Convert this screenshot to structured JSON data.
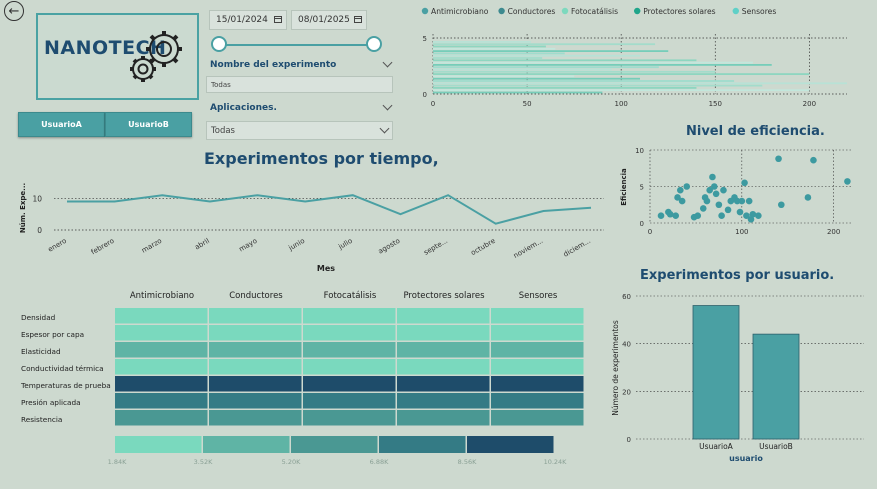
{
  "header": {
    "back_icon": "back-arrow-icon",
    "logo_text": "NANOTECH",
    "logo_icon": "gears-icon"
  },
  "users": {
    "a_label": "UsuarioA",
    "b_label": "UsuarioB"
  },
  "date_range": {
    "start": "15/01/2024",
    "end": "08/01/2025",
    "slider_start": 0.0,
    "slider_end": 1.0
  },
  "slicers": {
    "experiment_title": "Nombre del experimento",
    "experiment_value": "Todas",
    "applications_title": "Aplicaciones.",
    "applications_value": "Todas"
  },
  "colors": {
    "accent": "#4aa0a3",
    "dark": "#1e4c70",
    "bg": "#cdd9cf"
  },
  "top_chart": {
    "legend": [
      "Antimicrobiano",
      "Conductores",
      "Fotocatálisis",
      "Protectores solares",
      "Sensores"
    ],
    "legend_colors": [
      "#4aa0a3",
      "#3d8a8f",
      "#7dd9be",
      "#1fa58a",
      "#5fd0c7"
    ],
    "y_ticks": [
      "5",
      "0"
    ],
    "x_ticks": [
      "0",
      "50",
      "100",
      "150",
      "200"
    ]
  },
  "chart_data": [
    {
      "type": "line",
      "title": "Experimentos por tiempo,",
      "xlabel": "Mes",
      "ylabel": "Núm. Expe...",
      "categories": [
        "enero",
        "febrero",
        "marzo",
        "abril",
        "mayo",
        "junio",
        "julio",
        "agosto",
        "septe...",
        "octubre",
        "noviem...",
        "diciem..."
      ],
      "values": [
        9,
        9,
        11,
        9,
        11,
        9,
        11,
        5,
        11,
        2,
        6,
        7
      ],
      "ylim": [
        0,
        12
      ],
      "y_ticks": [
        "10",
        "0"
      ]
    },
    {
      "type": "scatter",
      "title": "Nivel de eficiencia.",
      "ylabel": "Eficiencia",
      "x_ticks": [
        "0",
        "100",
        "200"
      ],
      "y_ticks": [
        "10",
        "5",
        "0"
      ],
      "xlim": [
        0,
        220
      ],
      "ylim": [
        0,
        10
      ],
      "points": [
        [
          12,
          1
        ],
        [
          20,
          1.5
        ],
        [
          22,
          1.2
        ],
        [
          28,
          1
        ],
        [
          30,
          3.5
        ],
        [
          33,
          4.5
        ],
        [
          35,
          3
        ],
        [
          40,
          5
        ],
        [
          48,
          0.8
        ],
        [
          52,
          1
        ],
        [
          58,
          2
        ],
        [
          60,
          3.5
        ],
        [
          62,
          3
        ],
        [
          65,
          4.5
        ],
        [
          68,
          6.3
        ],
        [
          70,
          5
        ],
        [
          72,
          4
        ],
        [
          75,
          2.5
        ],
        [
          78,
          1
        ],
        [
          80,
          4.5
        ],
        [
          85,
          1.8
        ],
        [
          88,
          3
        ],
        [
          92,
          3.5
        ],
        [
          95,
          3
        ],
        [
          98,
          1.5
        ],
        [
          100,
          3
        ],
        [
          103,
          5.5
        ],
        [
          105,
          1
        ],
        [
          108,
          3
        ],
        [
          110,
          0.5
        ],
        [
          112,
          1.2
        ],
        [
          118,
          1
        ],
        [
          140,
          8.8
        ],
        [
          143,
          2.5
        ],
        [
          172,
          3.5
        ],
        [
          178,
          8.6
        ],
        [
          215,
          5.7
        ]
      ]
    },
    {
      "type": "bar",
      "title": "Experimentos por usuario.",
      "xlabel": "usuario",
      "ylabel": "Número de experimentos",
      "categories": [
        "UsuarioA",
        "UsuarioB"
      ],
      "values": [
        56,
        44
      ],
      "ylim": [
        0,
        60
      ],
      "y_ticks": [
        "60",
        "40",
        "20",
        "0"
      ]
    },
    {
      "type": "heatmap",
      "columns": [
        "Antimicrobiano",
        "Conductores",
        "Fotocatálisis",
        "Protectores solares",
        "Sensores"
      ],
      "rows": [
        "Densidad",
        "Espesor por capa",
        "Elasticidad",
        "Conductividad térmica",
        "Temperaturas de prueba",
        "Presión aplicada",
        "Resistencia"
      ],
      "levels": [
        0,
        0,
        1,
        0,
        4,
        3,
        2
      ],
      "legend_ticks": [
        "1.84K",
        "3.52K",
        "5.20K",
        "6.88K",
        "8.56K",
        "10.24K"
      ],
      "scale_colors": [
        "#7ad9be",
        "#5fb4a5",
        "#4a9893",
        "#347b85",
        "#1e4c6a"
      ]
    }
  ]
}
